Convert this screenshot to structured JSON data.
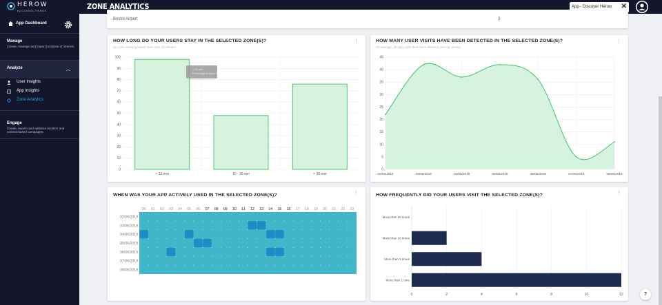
{
  "topbar": {
    "brand": "HEROW",
    "brand_sub": "by CONNECTHINGS",
    "page_title": "ZONE ANALYTICS",
    "app_selector": "App - Discover Herow",
    "app_selector_clear": "✕"
  },
  "sidebar": {
    "dashboard_label": "App Dashboard",
    "manage": {
      "title": "Manage",
      "desc": "Create, manage and import locations of interest."
    },
    "analyze": {
      "title": "Analyze",
      "items": [
        {
          "label": "User Insights",
          "icon": "person-icon"
        },
        {
          "label": "App Insights",
          "icon": "phone-icon"
        },
        {
          "label": "Zone Analytics",
          "icon": "zone-icon",
          "active": true
        }
      ]
    },
    "engage": {
      "title": "Engage",
      "desc": "Create, launch and optimize location and context-based campaigns."
    }
  },
  "zone_row": {
    "name": "Bristol Airport",
    "value": "3"
  },
  "cards": {
    "stay": {
      "title": "HOW LONG DO YOUR USERS STAY IN THE SELECTED ZONE(S)?",
      "subtitle": "On zone crossing lasted more than 10 minutes"
    },
    "visits": {
      "title": "HOW MANY USER VISITS HAVE BEEN DETECTED IN THE SELECTED ZONE(S)?",
      "subtitle": "On average, 28 daily visits have been detected over the period"
    },
    "active": {
      "title": "WHEN WAS YOUR APP ACTIVELY USED IN THE SELECTED ZONE(S)?"
    },
    "frequency": {
      "title": "HOW FREQUENTLY DID YOUR USERS VISIT THE SELECTED ZONE(S)?"
    }
  },
  "colors": {
    "green_line": "#3bc46a",
    "green_fill": "#d7f2df",
    "heat_base": "#40b6c8",
    "heat_hot": "#1f8cc8",
    "navy_bar": "#1c2b4e",
    "accent": "#29a8e0"
  },
  "chart_data": [
    {
      "type": "bar",
      "title": "HOW LONG DO YOUR USERS STAY IN THE SELECTED ZONE(S)?",
      "categories": [
        "< 10 min",
        "10 - 30 min",
        "> 30 min"
      ],
      "values": [
        98,
        48,
        76
      ],
      "ylim": [
        0,
        100
      ],
      "yticks": [
        0,
        10,
        20,
        30,
        40,
        50,
        60,
        70,
        80,
        90,
        100
      ],
      "tooltip": {
        "title": "< 10 min",
        "line": "Percentage of users: 98"
      }
    },
    {
      "type": "area",
      "title": "HOW MANY USER VISITS HAVE BEEN DETECTED IN THE SELECTED ZONE(S)?",
      "x": [
        "02/06/2019",
        "03/06/2019",
        "04/06/2019",
        "05/06/2019",
        "06/06/2019",
        "07/06/2019",
        "08/06/2019"
      ],
      "values": [
        22,
        42,
        37,
        42,
        36,
        5,
        11
      ],
      "ylim": [
        0,
        45
      ],
      "yticks": [
        0,
        5,
        10,
        15,
        20,
        25,
        30,
        35,
        40,
        45
      ]
    },
    {
      "type": "heatmap",
      "title": "WHEN WAS YOUR APP ACTIVELY USED IN THE SELECTED ZONE(S)?",
      "hours": [
        "00",
        "01",
        "02",
        "03",
        "04",
        "05",
        "06",
        "07",
        "08",
        "09",
        "10",
        "11",
        "12",
        "13",
        "14",
        "15",
        "16",
        "17",
        "18",
        "19",
        "20",
        "21",
        "22",
        "23"
      ],
      "highlight_hours": [
        "07",
        "08",
        "09",
        "10",
        "11",
        "12",
        "13",
        "14",
        "15",
        "16"
      ],
      "days": [
        "02/06/2019",
        "03/06/2019",
        "04/06/2019",
        "05/06/2019",
        "06/06/2019",
        "07/06/2019",
        "08/06/2019"
      ],
      "hot_cells": [
        [
          1,
          12
        ],
        [
          1,
          13
        ],
        [
          2,
          0
        ],
        [
          2,
          5
        ],
        [
          2,
          14
        ],
        [
          2,
          15
        ],
        [
          3,
          6
        ],
        [
          3,
          7
        ],
        [
          4,
          3
        ],
        [
          4,
          14
        ],
        [
          4,
          15
        ]
      ]
    },
    {
      "type": "bar",
      "orientation": "horizontal",
      "title": "HOW FREQUENTLY DID YOUR USERS VISIT THE SELECTED ZONE(S)?",
      "categories": [
        "More than 20 times",
        "More than 10 times",
        "More than 5 times",
        "More than 1 time"
      ],
      "values": [
        0,
        2,
        4,
        12
      ],
      "xlim": [
        0,
        12
      ],
      "xticks": [
        0,
        2,
        4,
        6,
        8,
        10,
        12
      ]
    }
  ],
  "help_label": "?"
}
